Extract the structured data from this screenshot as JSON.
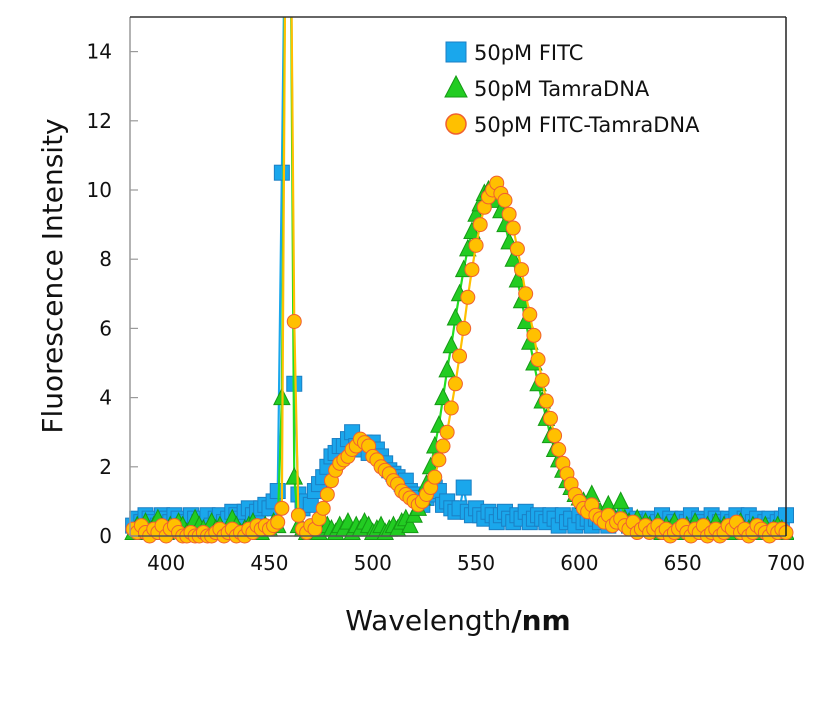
{
  "chart_data": {
    "type": "scatter",
    "title": "",
    "xlabel": "Wavelength",
    "xlabel_unit": "/nm",
    "ylabel": "Fluorescence Intensity",
    "xlim": [
      382.5,
      700
    ],
    "ylim": [
      0,
      15
    ],
    "xticks": [
      400,
      450,
      500,
      550,
      600,
      650,
      700
    ],
    "yticks": [
      0,
      2,
      4,
      6,
      8,
      10,
      12,
      14
    ],
    "grid": false,
    "legend_position": "top-right",
    "series": [
      {
        "name": "50pM FITC",
        "marker": "square",
        "color": "#1aa7ec",
        "edge_color": "#1b7fc4",
        "line_color": "#1aa7ec",
        "x": [
          384,
          386,
          388,
          390,
          392,
          394,
          396,
          398,
          400,
          402,
          404,
          406,
          408,
          410,
          412,
          414,
          416,
          418,
          420,
          422,
          424,
          426,
          428,
          430,
          432,
          434,
          436,
          438,
          440,
          442,
          444,
          446,
          448,
          450,
          452,
          454,
          456,
          458,
          460,
          462,
          464,
          466,
          468,
          470,
          472,
          474,
          476,
          478,
          480,
          482,
          484,
          486,
          488,
          490,
          492,
          494,
          496,
          498,
          500,
          502,
          504,
          506,
          508,
          510,
          512,
          514,
          516,
          518,
          520,
          522,
          524,
          526,
          528,
          530,
          532,
          534,
          536,
          538,
          540,
          542,
          544,
          546,
          548,
          550,
          552,
          554,
          556,
          558,
          560,
          562,
          564,
          566,
          568,
          570,
          572,
          574,
          576,
          578,
          580,
          582,
          584,
          586,
          588,
          590,
          592,
          594,
          596,
          598,
          600,
          602,
          604,
          606,
          608,
          610,
          612,
          614,
          616,
          618,
          620,
          622,
          624,
          626,
          628,
          630,
          632,
          634,
          636,
          638,
          640,
          642,
          644,
          646,
          648,
          650,
          652,
          654,
          656,
          658,
          660,
          662,
          664,
          666,
          668,
          670,
          672,
          674,
          676,
          678,
          680,
          682,
          684,
          686,
          688,
          690,
          692,
          694,
          696,
          698,
          700
        ],
        "y": [
          0.3,
          0.5,
          0.4,
          0.6,
          0.5,
          0.4,
          0.3,
          0.6,
          0.5,
          0.4,
          0.6,
          0.5,
          0.3,
          0.4,
          0.6,
          0.5,
          0.4,
          0.5,
          0.6,
          0.3,
          0.5,
          0.6,
          0.4,
          0.5,
          0.7,
          0.6,
          0.5,
          0.7,
          0.8,
          0.6,
          0.7,
          0.8,
          0.9,
          0.8,
          1.0,
          1.3,
          10.5,
          20,
          20,
          4.4,
          1.2,
          0.8,
          1.0,
          0.9,
          1.3,
          1.5,
          1.7,
          2.0,
          2.3,
          2.4,
          2.6,
          2.6,
          2.8,
          3.0,
          2.6,
          2.5,
          2.7,
          2.4,
          2.7,
          2.5,
          2.3,
          2.1,
          1.9,
          1.8,
          1.7,
          1.5,
          1.6,
          1.3,
          1.2,
          1.1,
          0.9,
          1.1,
          1.2,
          1.4,
          1.3,
          0.9,
          1.0,
          0.8,
          0.7,
          0.8,
          1.4,
          0.7,
          0.6,
          0.8,
          0.6,
          0.5,
          0.7,
          0.6,
          0.4,
          0.6,
          0.7,
          0.5,
          0.4,
          0.6,
          0.5,
          0.7,
          0.4,
          0.5,
          0.6,
          0.5,
          0.4,
          0.6,
          0.5,
          0.3,
          0.6,
          0.4,
          0.5,
          0.3,
          0.6,
          0.4,
          0.5,
          0.3,
          0.5,
          0.4,
          0.6,
          0.3,
          0.5,
          0.4,
          0.5,
          0.6,
          0.3,
          0.4,
          0.5,
          0.3,
          0.4,
          0.5,
          0.3,
          0.4,
          0.6,
          0.3,
          0.5,
          0.4,
          0.3,
          0.5,
          0.4,
          0.6,
          0.3,
          0.5,
          0.4,
          0.3,
          0.6,
          0.5,
          0.4,
          0.3,
          0.5,
          0.4,
          0.6,
          0.3,
          0.5,
          0.6,
          0.4,
          0.5,
          0.3,
          0.4,
          0.5,
          0.3,
          0.4,
          0.5,
          0.6
        ]
      },
      {
        "name": "50pM TamraDNA",
        "marker": "triangle",
        "color": "#22cc22",
        "edge_color": "#159915",
        "line_color": "#22dd22",
        "x": [
          384,
          386,
          388,
          390,
          392,
          394,
          396,
          398,
          400,
          402,
          404,
          406,
          408,
          410,
          412,
          414,
          416,
          418,
          420,
          422,
          424,
          426,
          428,
          430,
          432,
          434,
          436,
          438,
          440,
          442,
          444,
          446,
          448,
          450,
          452,
          454,
          456,
          458,
          460,
          462,
          464,
          466,
          468,
          470,
          472,
          474,
          476,
          478,
          480,
          482,
          484,
          486,
          488,
          490,
          492,
          494,
          496,
          498,
          500,
          502,
          504,
          506,
          508,
          510,
          512,
          514,
          516,
          518,
          520,
          522,
          524,
          526,
          528,
          530,
          532,
          534,
          536,
          538,
          540,
          542,
          544,
          546,
          548,
          550,
          552,
          554,
          556,
          558,
          560,
          562,
          564,
          566,
          568,
          570,
          572,
          574,
          576,
          578,
          580,
          582,
          584,
          586,
          588,
          590,
          592,
          594,
          596,
          598,
          600,
          602,
          604,
          606,
          608,
          610,
          612,
          614,
          616,
          618,
          620,
          622,
          624,
          626,
          628,
          630,
          632,
          634,
          636,
          638,
          640,
          642,
          644,
          646,
          648,
          650,
          652,
          654,
          656,
          658,
          660,
          662,
          664,
          666,
          668,
          670,
          672,
          674,
          676,
          678,
          680,
          682,
          684,
          686,
          688,
          690,
          692,
          694,
          696,
          698,
          700
        ],
        "y": [
          0.1,
          0.3,
          0.2,
          0.4,
          0.1,
          0.3,
          0.5,
          0.2,
          0.1,
          0.3,
          0.2,
          0.4,
          0.3,
          0.1,
          0.2,
          0.5,
          0.3,
          0.2,
          0.1,
          0.4,
          0.2,
          0.3,
          0.1,
          0.2,
          0.5,
          0.3,
          0.1,
          0.2,
          0.3,
          0.4,
          0.2,
          0.1,
          0.3,
          0.2,
          0.4,
          0.3,
          4.0,
          20,
          20,
          1.7,
          0.3,
          0.2,
          0.1,
          0.2,
          0.3,
          0.1,
          0.2,
          0.3,
          0.2,
          0.1,
          0.3,
          0.2,
          0.4,
          0.1,
          0.3,
          0.2,
          0.4,
          0.3,
          0.1,
          0.2,
          0.3,
          0.1,
          0.2,
          0.3,
          0.2,
          0.4,
          0.5,
          0.3,
          0.6,
          0.8,
          1.1,
          1.5,
          2.0,
          2.6,
          3.2,
          4.0,
          4.8,
          5.5,
          6.3,
          7.0,
          7.7,
          8.3,
          8.8,
          9.3,
          9.6,
          9.9,
          10.0,
          9.9,
          9.7,
          9.4,
          9.0,
          8.5,
          8.0,
          7.4,
          6.8,
          6.2,
          5.6,
          5.0,
          4.4,
          3.9,
          3.4,
          2.9,
          2.5,
          2.2,
          1.9,
          1.6,
          1.4,
          1.2,
          1.1,
          1.0,
          0.9,
          1.2,
          0.8,
          0.7,
          0.6,
          0.9,
          0.5,
          0.4,
          1.0,
          0.5,
          0.4,
          0.3,
          0.5,
          0.2,
          0.4,
          0.3,
          0.2,
          0.4,
          0.1,
          0.3,
          0.2,
          0.4,
          0.2,
          0.1,
          0.3,
          0.2,
          0.4,
          0.1,
          0.2,
          0.3,
          0.1,
          0.4,
          0.2,
          0.3,
          0.1,
          0.2,
          0.3,
          0.4,
          0.1,
          0.2,
          0.3,
          0.1,
          0.2,
          0.3,
          0.1,
          0.2,
          0.3,
          0.2,
          0.1
        ]
      },
      {
        "name": "50pM FITC-TamraDNA",
        "marker": "circle",
        "color": "#ffc000",
        "edge_color": "#f06030",
        "line_color": "#ffc000",
        "x": [
          384,
          386,
          388,
          390,
          392,
          394,
          396,
          398,
          400,
          402,
          404,
          406,
          408,
          410,
          412,
          414,
          416,
          418,
          420,
          422,
          424,
          426,
          428,
          430,
          432,
          434,
          436,
          438,
          440,
          442,
          444,
          446,
          448,
          450,
          452,
          454,
          456,
          458,
          460,
          462,
          464,
          466,
          468,
          470,
          472,
          474,
          476,
          478,
          480,
          482,
          484,
          486,
          488,
          490,
          492,
          494,
          496,
          498,
          500,
          502,
          504,
          506,
          508,
          510,
          512,
          514,
          516,
          518,
          520,
          522,
          524,
          526,
          528,
          530,
          532,
          534,
          536,
          538,
          540,
          542,
          544,
          546,
          548,
          550,
          552,
          554,
          556,
          558,
          560,
          562,
          564,
          566,
          568,
          570,
          572,
          574,
          576,
          578,
          580,
          582,
          584,
          586,
          588,
          590,
          592,
          594,
          596,
          598,
          600,
          602,
          604,
          606,
          608,
          610,
          612,
          614,
          616,
          618,
          620,
          622,
          624,
          626,
          628,
          630,
          632,
          634,
          636,
          638,
          640,
          642,
          644,
          646,
          648,
          650,
          652,
          654,
          656,
          658,
          660,
          662,
          664,
          666,
          668,
          670,
          672,
          674,
          676,
          678,
          680,
          682,
          684,
          686,
          688,
          690,
          692,
          694,
          696,
          698,
          700
        ],
        "y": [
          0.2,
          0.1,
          0.3,
          0.1,
          0.0,
          0.2,
          0.1,
          0.3,
          0.0,
          0.2,
          0.3,
          0.1,
          0.0,
          0.0,
          0.1,
          0.0,
          0.0,
          0.1,
          0.0,
          0.0,
          0.1,
          0.2,
          0.0,
          0.1,
          0.2,
          0.0,
          0.1,
          0.0,
          0.2,
          0.1,
          0.3,
          0.2,
          0.3,
          0.2,
          0.3,
          0.4,
          0.8,
          20,
          20,
          6.2,
          0.6,
          0.2,
          0.1,
          0.3,
          0.2,
          0.5,
          0.8,
          1.2,
          1.6,
          1.9,
          2.1,
          2.2,
          2.3,
          2.5,
          2.6,
          2.8,
          2.7,
          2.6,
          2.3,
          2.2,
          2.0,
          1.9,
          1.8,
          1.6,
          1.5,
          1.3,
          1.2,
          1.1,
          1.0,
          0.9,
          1.0,
          1.2,
          1.4,
          1.7,
          2.2,
          2.6,
          3.0,
          3.7,
          4.4,
          5.2,
          6.0,
          6.9,
          7.7,
          8.4,
          9.0,
          9.5,
          9.8,
          10.0,
          10.2,
          9.9,
          9.7,
          9.3,
          8.9,
          8.3,
          7.7,
          7.0,
          6.4,
          5.8,
          5.1,
          4.5,
          3.9,
          3.4,
          2.9,
          2.5,
          2.1,
          1.8,
          1.5,
          1.2,
          1.0,
          0.8,
          0.7,
          0.9,
          0.6,
          0.5,
          0.4,
          0.6,
          0.3,
          0.4,
          0.5,
          0.3,
          0.2,
          0.4,
          0.1,
          0.2,
          0.3,
          0.1,
          0.2,
          0.3,
          0.1,
          0.2,
          0.0,
          0.1,
          0.2,
          0.3,
          0.1,
          0.0,
          0.2,
          0.1,
          0.3,
          0.0,
          0.1,
          0.2,
          0.0,
          0.1,
          0.3,
          0.2,
          0.4,
          0.1,
          0.2,
          0.0,
          0.1,
          0.3,
          0.2,
          0.1,
          0.0,
          0.2,
          0.1,
          0.2,
          0.1
        ]
      }
    ]
  }
}
